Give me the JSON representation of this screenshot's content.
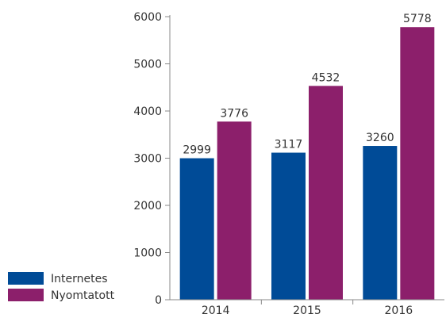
{
  "chart_data": {
    "type": "bar",
    "categories": [
      "2014",
      "2015",
      "2016"
    ],
    "series": [
      {
        "name": "Internetes",
        "color": "#004b97",
        "values": [
          2999,
          3117,
          3260
        ]
      },
      {
        "name": "Nyomtatott",
        "color": "#8c1f6b",
        "values": [
          3776,
          4532,
          5778
        ]
      }
    ],
    "ylim": [
      0,
      6000
    ],
    "yticks": [
      "0",
      "1000",
      "2000",
      "3000",
      "4000",
      "5000",
      "6000"
    ],
    "value_labels": [
      [
        "2999",
        "3117",
        "3260"
      ],
      [
        "3776",
        "4532",
        "5778"
      ]
    ],
    "legend_position": "bottom-left",
    "grid": false
  }
}
